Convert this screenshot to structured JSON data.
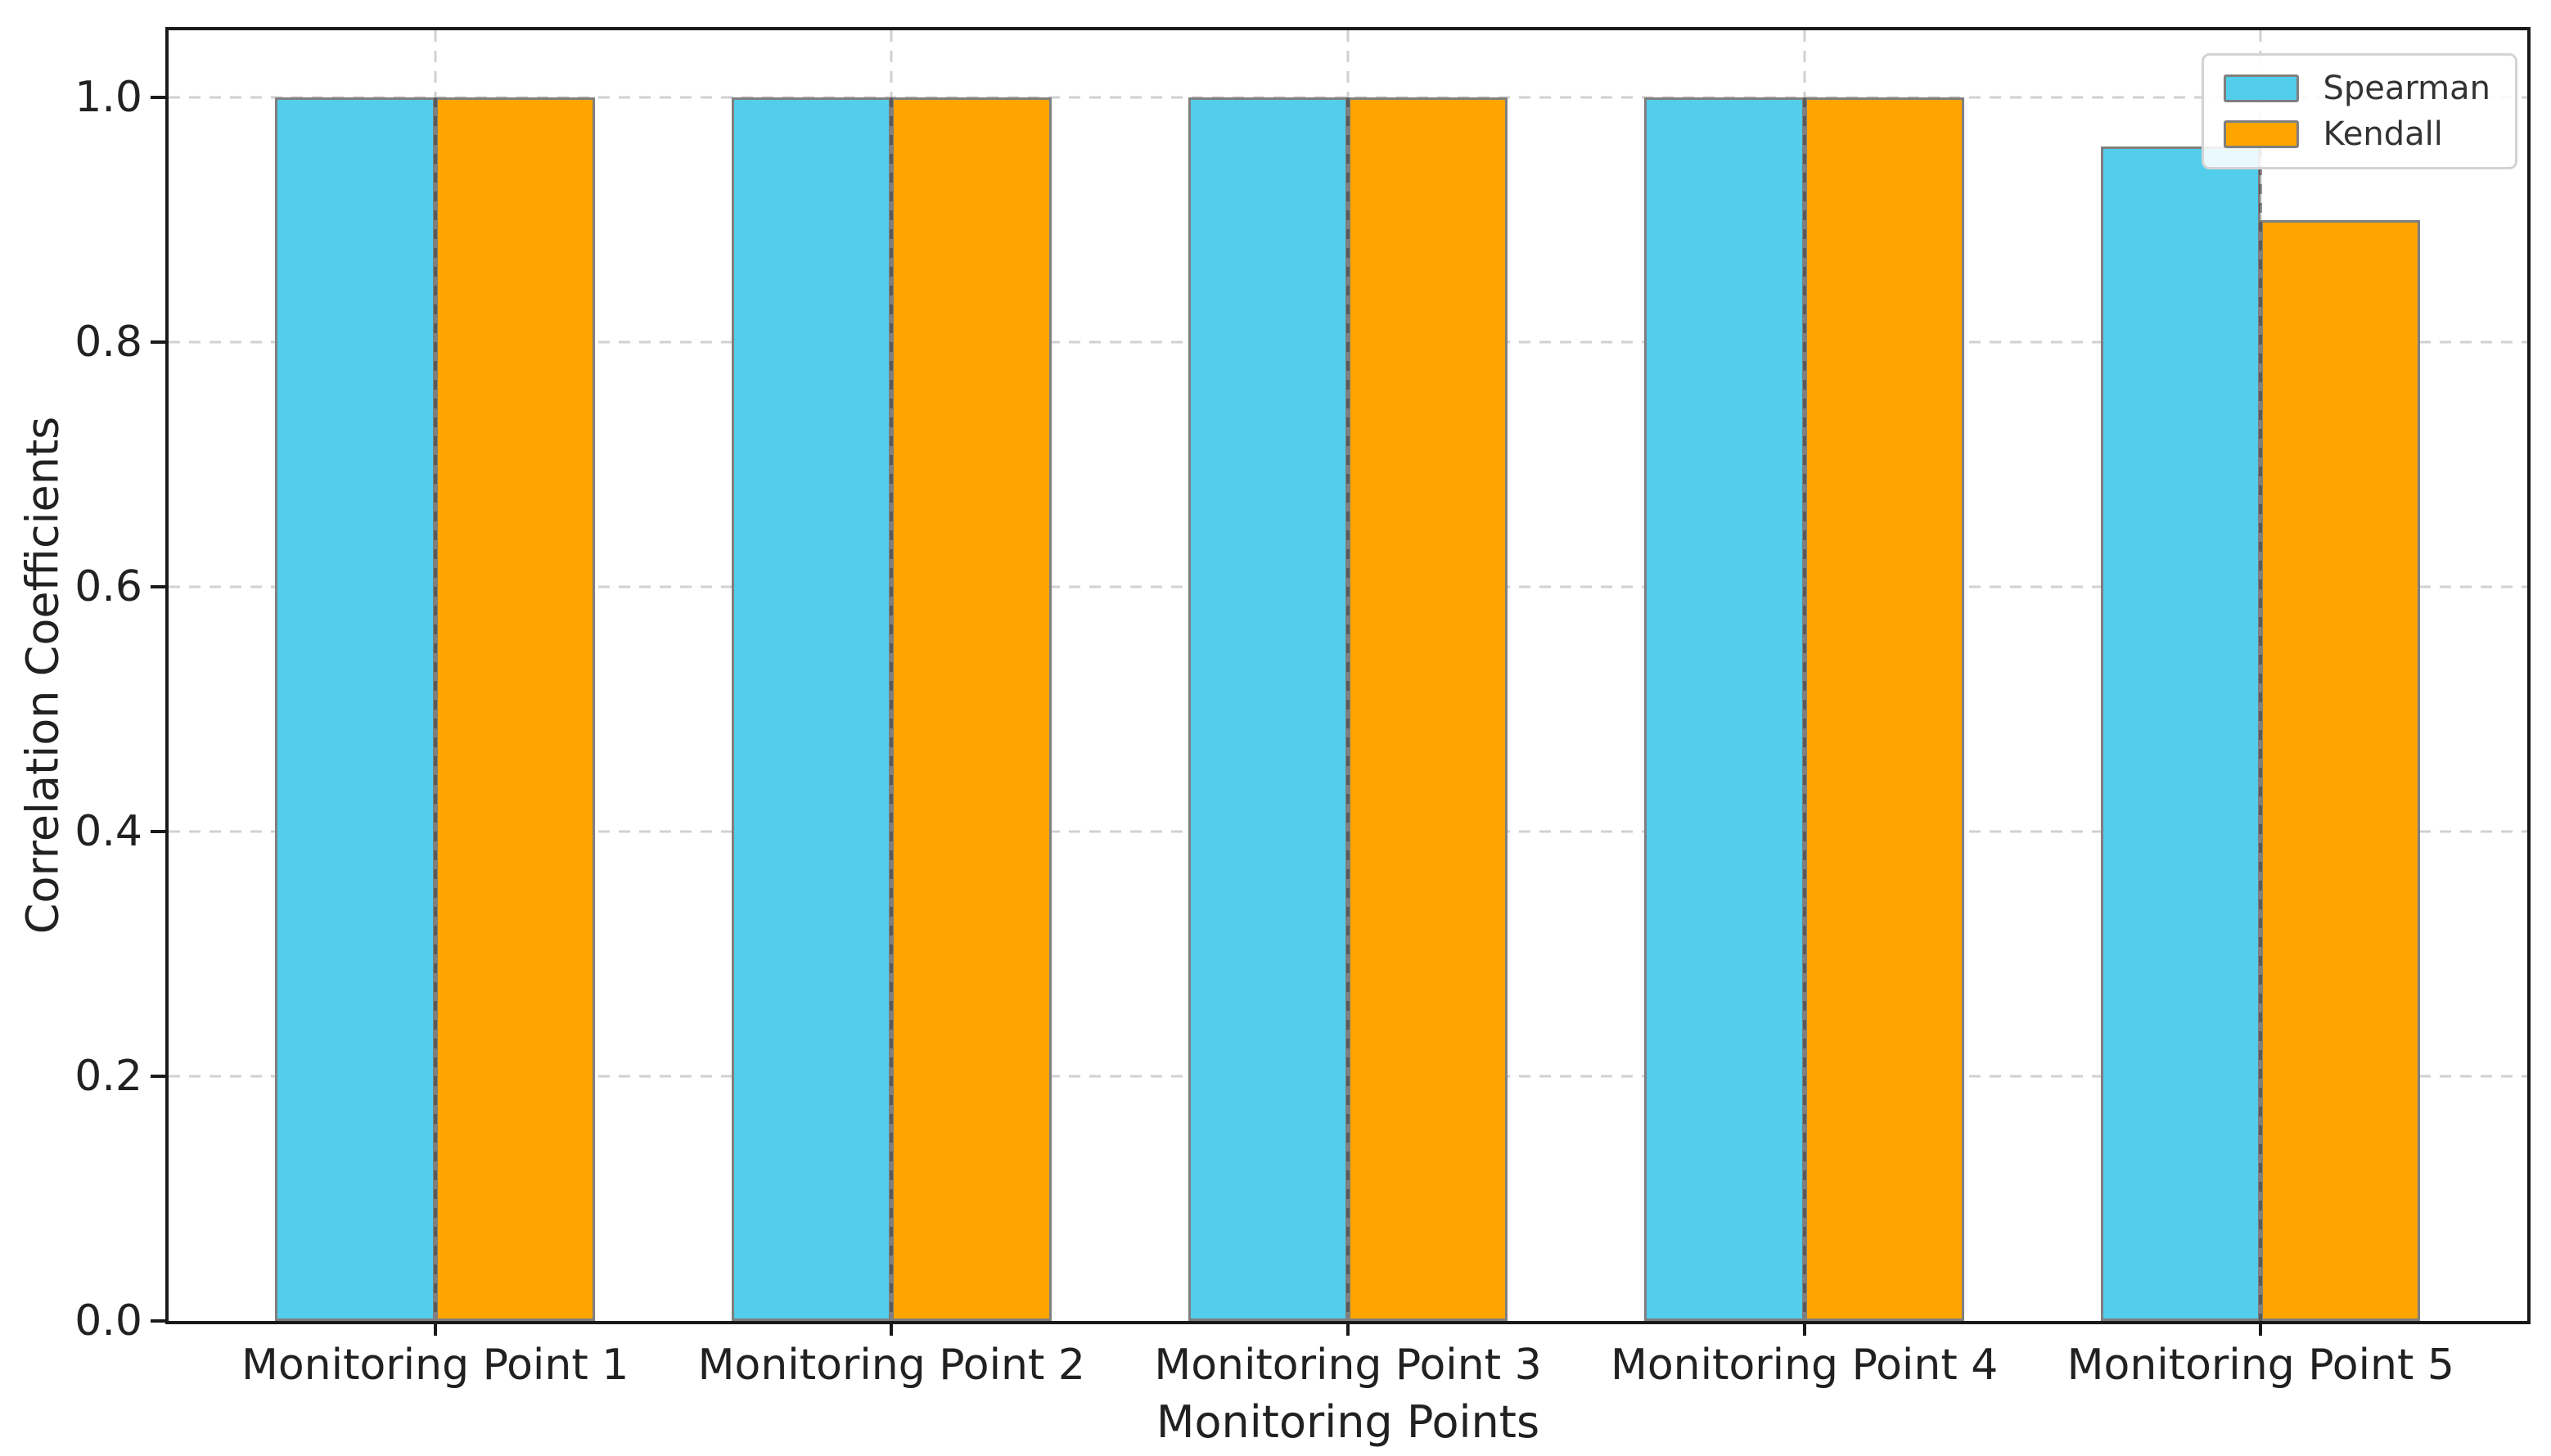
{
  "chart_data": {
    "type": "bar",
    "title": "",
    "categories": [
      "Monitoring Point 1",
      "Monitoring Point 2",
      "Monitoring Point 3",
      "Monitoring Point 4",
      "Monitoring Point 5"
    ],
    "x_positions": [
      0,
      1,
      2,
      3,
      4
    ],
    "xlim": [
      -0.584,
      4.584
    ],
    "bar_width": 0.35,
    "series": [
      {
        "name": "Spearman",
        "color": "#53cdec",
        "edge_color": "#7f7f7f",
        "values": [
          1.0,
          1.0,
          1.0,
          1.0,
          0.96
        ]
      },
      {
        "name": "Kendall",
        "color": "#ffa500",
        "edge_color": "#7f7f7f",
        "values": [
          1.0,
          1.0,
          1.0,
          1.0,
          0.9
        ]
      }
    ],
    "xlabel": "Monitoring Points",
    "ylabel": "Correlation Coefficients",
    "ylim": [
      0,
      1.055
    ],
    "yticks": [
      0.0,
      0.2,
      0.4,
      0.6,
      0.8,
      1.0
    ],
    "ytick_labels": [
      "0.0",
      "0.2",
      "0.4",
      "0.6",
      "0.8",
      "1.0"
    ],
    "grid": {
      "visible": true,
      "linestyle": "dashed",
      "color": "#c9c9c9"
    },
    "legend": {
      "position": "upper-right",
      "items": [
        "Spearman",
        "Kendall"
      ]
    }
  },
  "colors": {
    "spine": "#1a1a1a",
    "grid": "#c9c9c9",
    "text": "#212121",
    "legend_border": "#d3d3d3",
    "bar_edge": "#7f7f7f"
  }
}
